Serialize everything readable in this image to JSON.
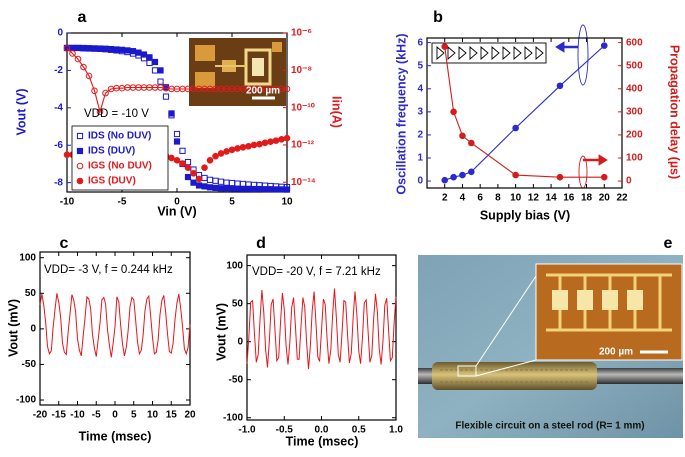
{
  "chart_data": [
    {
      "label": "a",
      "type": "line",
      "annotation": "VDD = -10 V",
      "inset_scale_bar": "200 µm",
      "xlabel": "Vin (V)",
      "ylabel": "Vout (V)",
      "y2label": "Iin(A)",
      "xlim": [
        -10,
        10
      ],
      "xticks": [
        -10,
        -5,
        0,
        5,
        10
      ],
      "ylim": [
        -8.5,
        0
      ],
      "yticks": [
        -8,
        -6,
        -4,
        -2,
        0
      ],
      "y2lim": [
        3e-15,
        1e-06
      ],
      "y2log": true,
      "y2ticks": [
        {
          "value": 1e-14,
          "label": "10⁻¹⁴"
        },
        {
          "value": 1e-12,
          "label": "10⁻¹²"
        },
        {
          "value": 1e-10,
          "label": "10⁻¹⁰"
        },
        {
          "value": 1e-08,
          "label": "10⁻⁸"
        },
        {
          "value": 1e-06,
          "label": "10⁻⁶"
        }
      ],
      "legend": "lower left",
      "x": [
        -10,
        -9.5,
        -9,
        -8.5,
        -8,
        -7.5,
        -7,
        -6.5,
        -6,
        -5.5,
        -5,
        -4.5,
        -4,
        -3.5,
        -3,
        -2.5,
        -2,
        -1.5,
        -1,
        -0.5,
        0,
        0.5,
        1,
        1.5,
        2,
        2.5,
        3,
        3.5,
        4,
        4.5,
        5,
        5.5,
        6,
        6.5,
        7,
        7.5,
        8,
        8.5,
        9,
        9.5,
        10
      ],
      "series": [
        {
          "name": "IDS (No DUV)",
          "color": "#1a1acc",
          "marker": "square",
          "filled": false,
          "line": false,
          "axis": "y",
          "values": [
            -0.8,
            -0.8,
            -0.8,
            -0.82,
            -0.83,
            -0.84,
            -0.85,
            -0.87,
            -0.9,
            -0.93,
            -0.97,
            -1.02,
            -1.1,
            -1.2,
            -1.35,
            -1.6,
            -2.0,
            -2.6,
            -3.4,
            -4.4,
            -5.4,
            -6.3,
            -6.9,
            -7.3,
            -7.6,
            -7.75,
            -7.85,
            -7.9,
            -7.95,
            -8.0,
            -8.02,
            -8.05,
            -8.07,
            -8.1,
            -8.12,
            -8.14,
            -8.16,
            -8.18,
            -8.2,
            -8.22,
            -8.24
          ]
        },
        {
          "name": "IDS (DUV)",
          "color": "#1a1acc",
          "marker": "square",
          "filled": true,
          "line": false,
          "axis": "y",
          "values": [
            -0.8,
            -0.8,
            -0.8,
            -0.8,
            -0.81,
            -0.82,
            -0.83,
            -0.84,
            -0.86,
            -0.88,
            -0.9,
            -0.93,
            -0.97,
            -1.05,
            -1.15,
            -1.3,
            -1.55,
            -2.0,
            -2.9,
            -4.3,
            -5.8,
            -7.0,
            -7.7,
            -8.0,
            -8.15,
            -8.2,
            -8.25,
            -8.28,
            -8.3,
            -8.3,
            -8.32,
            -8.32,
            -8.33,
            -8.33,
            -8.34,
            -8.34,
            -8.35,
            -8.35,
            -8.36,
            -8.36,
            -8.37
          ]
        },
        {
          "name": "IGS (No DUV)",
          "color": "#e31a1c",
          "marker": "circle",
          "filled": false,
          "line": true,
          "axis": "y2",
          "values": [
            1.5e-07,
            8e-08,
            4e-08,
            1.5e-08,
            5e-09,
            8e-10,
            6e-11,
            6e-10,
            1e-09,
            1.1e-09,
            1.1e-09,
            1.2e-09,
            1.2e-09,
            1.2e-09,
            1.2e-09,
            1.2e-09,
            1.2e-09,
            1.2e-09,
            1.1e-09,
            1e-09,
            1e-09,
            1e-09,
            1e-09,
            1e-09,
            1e-09,
            1e-09,
            1e-09,
            1e-09,
            1e-09,
            1e-09,
            1e-09,
            1e-09,
            1e-09,
            1e-09,
            1e-09,
            1e-09,
            1e-09,
            1e-09,
            1e-09,
            1e-09,
            1e-09
          ]
        },
        {
          "name": "IGS (DUV)",
          "color": "#e31a1c",
          "marker": "circle",
          "filled": true,
          "line": false,
          "axis": "y2",
          "values": [
            3e-13,
            3e-13,
            3e-13,
            3e-13,
            3e-13,
            3e-13,
            3e-13,
            3e-13,
            3e-13,
            3e-13,
            3e-13,
            3e-13,
            3e-13,
            3e-13,
            3e-13,
            3e-13,
            3e-13,
            3e-13,
            2.5e-13,
            2e-13,
            1.5e-13,
            1e-13,
            6e-14,
            3e-14,
            1.5e-14,
            6e-14,
            1.5e-13,
            2.5e-13,
            3.5e-13,
            4.5e-13,
            5.5e-13,
            6.5e-13,
            7.5e-13,
            8.5e-13,
            1e-12,
            1.1e-12,
            1.3e-12,
            1.5e-12,
            1.7e-12,
            2e-12,
            2.3e-12
          ]
        }
      ]
    },
    {
      "label": "b",
      "type": "line",
      "xlabel": "Supply bias (V)",
      "ylabel": "Oscillation frequency (kHz)",
      "y2label": "Propagation delay (µs)",
      "xlim": [
        0,
        22
      ],
      "xticks": [
        2,
        4,
        6,
        8,
        10,
        12,
        14,
        16,
        18,
        20,
        22
      ],
      "ylim": [
        -0.3,
        6.2
      ],
      "yticks": [
        0,
        1,
        2,
        3,
        4,
        5,
        6
      ],
      "y2lim": [
        -30,
        620
      ],
      "y2ticks": [
        0,
        100,
        200,
        300,
        400,
        500,
        600
      ],
      "y2log": false,
      "x": [
        2,
        3,
        4,
        5,
        10,
        15,
        20
      ],
      "series": [
        {
          "color": "#2a2ad0",
          "marker": "circle",
          "filled": true,
          "line": true,
          "axis": "y",
          "values": [
            0.04,
            0.17,
            0.26,
            0.4,
            2.3,
            4.13,
            5.87
          ]
        },
        {
          "color": "#d41c1c",
          "marker": "circle",
          "filled": true,
          "line": true,
          "axis": "y2",
          "values": [
            583,
            300,
            196,
            165,
            26,
            17,
            17
          ]
        }
      ]
    },
    {
      "label": "c",
      "type": "line",
      "annotation": "VDD= -3 V, f = 0.244 kHz",
      "xlabel": "Time (msec)",
      "ylabel": "Vout (mV)",
      "xlim": [
        -20,
        20
      ],
      "xticks": [
        -20,
        -15,
        -10,
        -5,
        0,
        5,
        10,
        15,
        20
      ],
      "ylim": [
        -107,
        108
      ],
      "yticks": [
        -100,
        -50,
        0,
        50,
        100
      ],
      "x": [
        -20,
        -19.5,
        -19,
        -18.5,
        -18,
        -17.5,
        -17,
        -16.5,
        -16,
        -15.5,
        -15,
        -14.5,
        -14,
        -13.5,
        -13,
        -12.5,
        -12,
        -11.5,
        -11,
        -10.5,
        -10,
        -9.5,
        -9,
        -8.5,
        -8,
        -7.5,
        -7,
        -6.5,
        -6,
        -5.5,
        -5,
        -4.5,
        -4,
        -3.5,
        -3,
        -2.5,
        -2,
        -1.5,
        -1,
        -0.5,
        0,
        0.5,
        1,
        1.5,
        2,
        2.5,
        3,
        3.5,
        4,
        4.5,
        5,
        5.5,
        6,
        6.5,
        7,
        7.5,
        8,
        8.5,
        9,
        9.5,
        10,
        10.5,
        11,
        11.5,
        12,
        12.5,
        13,
        13.5,
        14,
        14.5,
        15,
        15.5,
        16,
        16.5,
        17,
        17.5,
        18,
        18.5,
        19,
        19.5,
        20
      ],
      "series": [
        {
          "color": "#e8141a",
          "marker": "none",
          "line": true,
          "axis": "y",
          "values": [
            34,
            49,
            33,
            10,
            -25,
            -35,
            -31,
            2,
            27,
            50,
            37,
            17,
            -20,
            -33,
            -36,
            -5,
            21,
            48,
            40,
            24,
            -14,
            -30,
            -38,
            -11,
            15,
            45,
            42,
            29,
            -8,
            -27,
            -39,
            -16,
            8,
            41,
            44,
            35,
            -1,
            -23,
            -40,
            -21,
            3,
            45,
            38,
            6,
            -21,
            -38,
            -26,
            -3,
            31,
            44,
            41,
            13,
            -18,
            -35,
            -30,
            -9,
            26,
            42,
            46,
            19,
            -12,
            -35,
            -33,
            -16,
            20,
            40,
            47,
            24,
            -7,
            -32,
            -34,
            -20,
            13,
            36,
            49,
            30,
            4,
            -28,
            -35,
            -26,
            6
          ]
        }
      ]
    },
    {
      "label": "d",
      "type": "line",
      "annotation": "VDD= -20 V, f = 7.21 kHz",
      "xlabel": "Time (msec)",
      "ylabel": "Vout (mV)",
      "xlim": [
        -1,
        1
      ],
      "xticks": [
        {
          "value": -1,
          "label": "-1.0"
        },
        -0.5,
        {
          "value": 0,
          "label": "0.0"
        },
        0.5,
        {
          "value": 1,
          "label": "1.0"
        }
      ],
      "ylim": [
        -103,
        114
      ],
      "yticks": [
        -100,
        -50,
        0,
        50,
        100
      ],
      "x": [
        -1,
        -0.975,
        -0.95,
        -0.925,
        -0.9,
        -0.875,
        -0.85,
        -0.825,
        -0.8,
        -0.775,
        -0.75,
        -0.725,
        -0.7,
        -0.675,
        -0.65,
        -0.625,
        -0.6,
        -0.575,
        -0.55,
        -0.525,
        -0.5,
        -0.475,
        -0.45,
        -0.425,
        -0.4,
        -0.375,
        -0.35,
        -0.325,
        -0.3,
        -0.275,
        -0.25,
        -0.225,
        -0.2,
        -0.175,
        -0.15,
        -0.125,
        -0.1,
        -0.075,
        -0.05,
        -0.025,
        0,
        0.025,
        0.05,
        0.075,
        0.1,
        0.125,
        0.15,
        0.175,
        0.2,
        0.225,
        0.25,
        0.275,
        0.3,
        0.325,
        0.35,
        0.375,
        0.4,
        0.425,
        0.45,
        0.475,
        0.5,
        0.525,
        0.55,
        0.575,
        0.6,
        0.625,
        0.65,
        0.675,
        0.7,
        0.725,
        0.75,
        0.775,
        0.8,
        0.825,
        0.85,
        0.875,
        0.9,
        0.925,
        0.95,
        0.975,
        1
      ],
      "series": [
        {
          "color": "#e8141a",
          "marker": "none",
          "line": true,
          "axis": "y",
          "values": [
            -29,
            7,
            52,
            54,
            12,
            -27,
            -17,
            29,
            68,
            38,
            -10,
            -34,
            2,
            49,
            56,
            17,
            -25,
            -21,
            25,
            64,
            42,
            -6,
            -30,
            -2,
            45,
            58,
            21,
            -23,
            -23,
            20,
            58,
            46,
            -1,
            -36,
            -7,
            41,
            66,
            26,
            -20,
            -26,
            15,
            56,
            49,
            3,
            -29,
            -11,
            37,
            70,
            31,
            -17,
            -27,
            11,
            54,
            52,
            8,
            -28,
            -15,
            33,
            66,
            35,
            -13,
            -29,
            6,
            51,
            55,
            13,
            -27,
            -18,
            29,
            63,
            39,
            -9,
            -30,
            1,
            48,
            57,
            17,
            -25,
            -21,
            24,
            59
          ]
        }
      ]
    }
  ],
  "photo": {
    "label": "e",
    "caption": "Flexible  circuit on a steel rod (R= 1 mm)",
    "scale_bar": "200 µm"
  }
}
